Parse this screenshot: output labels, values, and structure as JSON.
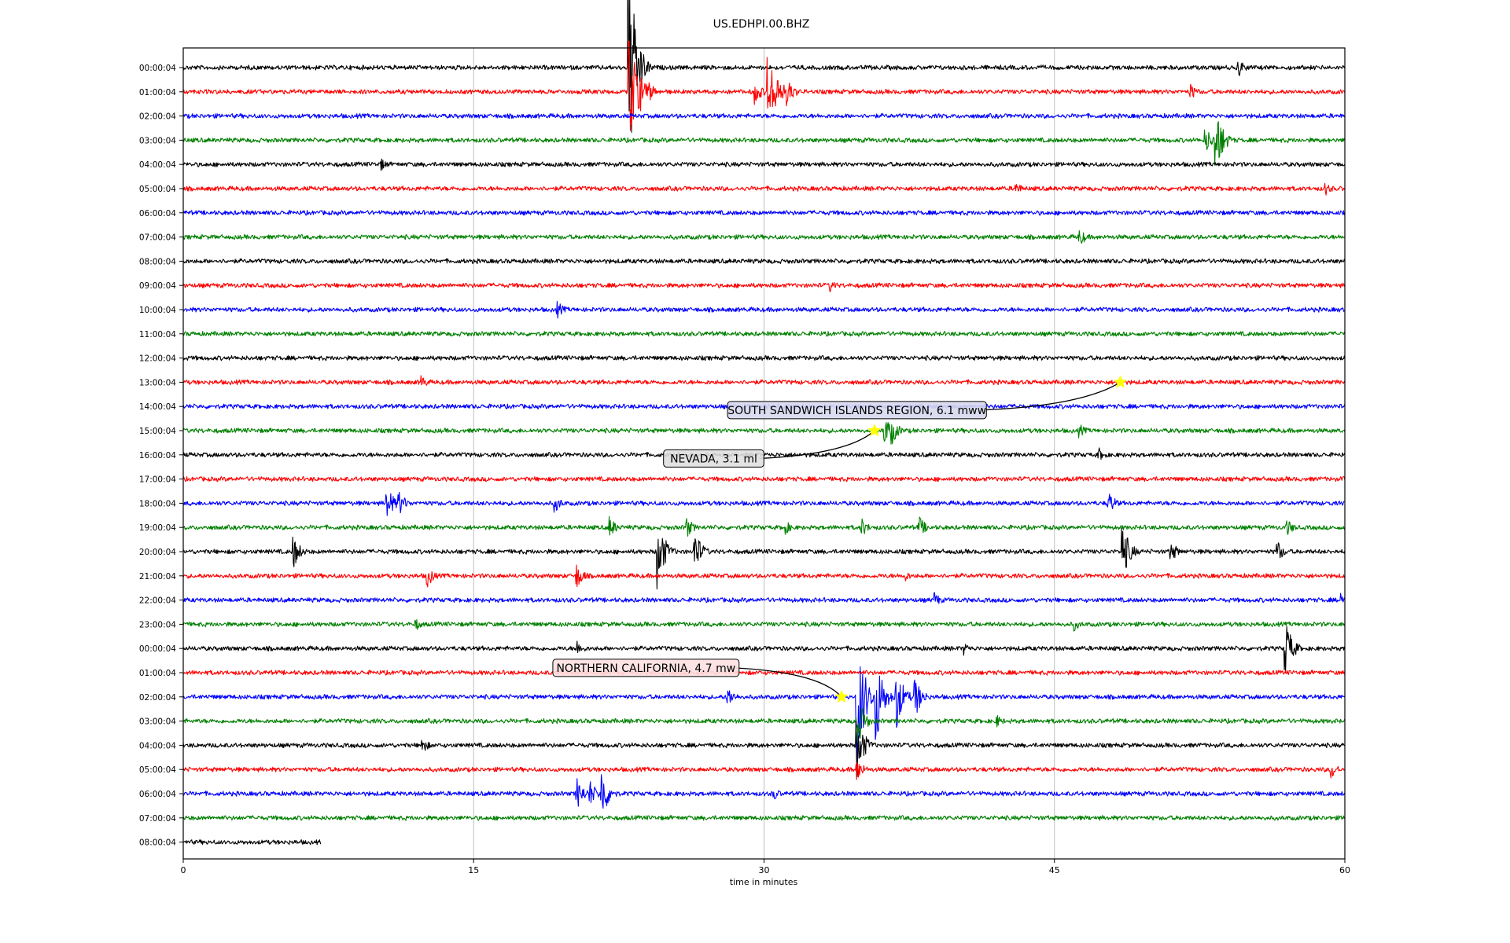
{
  "chart_data": {
    "type": "line",
    "title": "US.EDHPI.00.BHZ",
    "xlabel": "time in minutes",
    "ylabel": "",
    "xlim": [
      0,
      60
    ],
    "x_ticks": [
      "0",
      "15",
      "30",
      "45",
      "60"
    ],
    "grid": "vertical lines at x ticks",
    "row_colors": [
      "#000000",
      "#ff0000",
      "#0000ff",
      "#008000"
    ],
    "rows": [
      {
        "label": "00:00:04",
        "color": "#000000",
        "end_minute": 60,
        "activity": [
          [
            23.0,
            5.0
          ],
          [
            23.5,
            0.9
          ],
          [
            54.5,
            0.4
          ]
        ]
      },
      {
        "label": "01:00:04",
        "color": "#ff0000",
        "end_minute": 60,
        "activity": [
          [
            23.0,
            3.0
          ],
          [
            23.6,
            0.9
          ],
          [
            24.0,
            0.5
          ],
          [
            29.5,
            0.6
          ],
          [
            30.2,
            1.6
          ],
          [
            30.6,
            1.0
          ],
          [
            31.2,
            0.6
          ],
          [
            52.0,
            0.4
          ]
        ]
      },
      {
        "label": "02:00:04",
        "color": "#0000ff",
        "end_minute": 60,
        "activity": []
      },
      {
        "label": "03:00:04",
        "color": "#008000",
        "end_minute": 60,
        "activity": [
          [
            52.8,
            0.6
          ],
          [
            53.3,
            1.7
          ],
          [
            53.7,
            0.5
          ]
        ]
      },
      {
        "label": "04:00:04",
        "color": "#000000",
        "end_minute": 60,
        "activity": [
          [
            10.2,
            0.3
          ]
        ]
      },
      {
        "label": "05:00:04",
        "color": "#ff0000",
        "end_minute": 60,
        "activity": [
          [
            43.0,
            0.3
          ],
          [
            59.0,
            0.3
          ]
        ]
      },
      {
        "label": "06:00:04",
        "color": "#0000ff",
        "end_minute": 60,
        "activity": []
      },
      {
        "label": "07:00:04",
        "color": "#008000",
        "end_minute": 60,
        "activity": [
          [
            46.3,
            0.4
          ]
        ]
      },
      {
        "label": "08:00:04",
        "color": "#000000",
        "end_minute": 60,
        "activity": []
      },
      {
        "label": "09:00:04",
        "color": "#ff0000",
        "end_minute": 60,
        "activity": [
          [
            33.4,
            0.3
          ]
        ]
      },
      {
        "label": "10:00:04",
        "color": "#0000ff",
        "end_minute": 60,
        "activity": [
          [
            19.3,
            0.4
          ]
        ]
      },
      {
        "label": "11:00:04",
        "color": "#008000",
        "end_minute": 60,
        "activity": []
      },
      {
        "label": "12:00:04",
        "color": "#000000",
        "end_minute": 60,
        "activity": []
      },
      {
        "label": "13:00:04",
        "color": "#ff0000",
        "end_minute": 60,
        "activity": [
          [
            12.3,
            0.3
          ]
        ]
      },
      {
        "label": "14:00:04",
        "color": "#0000ff",
        "end_minute": 60,
        "activity": []
      },
      {
        "label": "15:00:04",
        "color": "#008000",
        "end_minute": 60,
        "activity": [
          [
            36.2,
            0.7
          ],
          [
            36.6,
            0.6
          ],
          [
            46.3,
            0.3
          ]
        ]
      },
      {
        "label": "16:00:04",
        "color": "#000000",
        "end_minute": 60,
        "activity": [
          [
            47.3,
            0.3
          ]
        ]
      },
      {
        "label": "17:00:04",
        "color": "#ff0000",
        "end_minute": 60,
        "activity": []
      },
      {
        "label": "18:00:04",
        "color": "#0000ff",
        "end_minute": 60,
        "activity": [
          [
            10.5,
            0.8
          ],
          [
            11.1,
            0.6
          ],
          [
            19.2,
            0.4
          ],
          [
            47.8,
            0.5
          ]
        ]
      },
      {
        "label": "19:00:04",
        "color": "#008000",
        "end_minute": 60,
        "activity": [
          [
            22.0,
            0.5
          ],
          [
            26.0,
            0.45
          ],
          [
            31.0,
            0.4
          ],
          [
            35.0,
            0.45
          ],
          [
            38.0,
            0.5
          ],
          [
            57.0,
            0.4
          ]
        ]
      },
      {
        "label": "20:00:04",
        "color": "#000000",
        "end_minute": 60,
        "activity": [
          [
            5.7,
            0.7
          ],
          [
            24.5,
            1.6
          ],
          [
            26.4,
            1.0
          ],
          [
            48.5,
            1.3
          ],
          [
            51.0,
            0.5
          ],
          [
            56.5,
            0.5
          ]
        ]
      },
      {
        "label": "21:00:04",
        "color": "#ff0000",
        "end_minute": 60,
        "activity": [
          [
            12.6,
            0.5
          ],
          [
            20.3,
            0.6
          ],
          [
            37.2,
            0.3
          ]
        ]
      },
      {
        "label": "22:00:04",
        "color": "#0000ff",
        "end_minute": 60,
        "activity": [
          [
            38.8,
            0.35
          ],
          [
            59.8,
            0.4
          ]
        ]
      },
      {
        "label": "23:00:04",
        "color": "#008000",
        "end_minute": 60,
        "activity": [
          [
            12.0,
            0.3
          ],
          [
            46.0,
            0.3
          ]
        ]
      },
      {
        "label": "00:00:04",
        "color": "#000000",
        "end_minute": 60,
        "activity": [
          [
            20.3,
            0.4
          ],
          [
            40.3,
            0.3
          ],
          [
            56.9,
            1.3
          ]
        ]
      },
      {
        "label": "01:00:04",
        "color": "#ff0000",
        "end_minute": 60,
        "activity": []
      },
      {
        "label": "02:00:04",
        "color": "#0000ff",
        "end_minute": 60,
        "activity": [
          [
            34.8,
            3.2
          ],
          [
            35.8,
            2.0
          ],
          [
            36.8,
            1.5
          ],
          [
            37.8,
            0.9
          ],
          [
            28.1,
            0.5
          ]
        ]
      },
      {
        "label": "03:00:04",
        "color": "#008000",
        "end_minute": 60,
        "activity": [
          [
            34.8,
            1.2
          ],
          [
            42.0,
            0.3
          ]
        ]
      },
      {
        "label": "04:00:04",
        "color": "#000000",
        "end_minute": 60,
        "activity": [
          [
            34.8,
            1.4
          ],
          [
            12.3,
            0.4
          ]
        ]
      },
      {
        "label": "05:00:04",
        "color": "#ff0000",
        "end_minute": 60,
        "activity": [
          [
            34.8,
            0.5
          ],
          [
            59.3,
            0.4
          ]
        ]
      },
      {
        "label": "06:00:04",
        "color": "#0000ff",
        "end_minute": 60,
        "activity": [
          [
            20.3,
            0.8
          ],
          [
            21.0,
            0.6
          ],
          [
            21.6,
            1.2
          ],
          [
            30.5,
            0.3
          ]
        ]
      },
      {
        "label": "07:00:04",
        "color": "#008000",
        "end_minute": 60,
        "activity": []
      },
      {
        "label": "08:00:04",
        "color": "#000000",
        "end_minute": 7.1,
        "activity": []
      }
    ],
    "events": [
      {
        "label": "SOUTH SANDWICH ISLANDS REGION, 6.1 mww",
        "row": 13,
        "minute": 48.4,
        "label_minute": 34.8,
        "label_row_offset": 1.15,
        "box_fill": "#d8d8ee"
      },
      {
        "label": "NEVADA, 3.1 ml",
        "row": 15,
        "minute": 35.7,
        "label_minute": 27.4,
        "label_row_offset": 1.15,
        "box_fill": "#e0e0e0"
      },
      {
        "label": "NORTHERN CALIFORNIA, 4.7 mw",
        "row": 26,
        "minute": 34.0,
        "label_minute": 23.9,
        "label_row_offset": -1.2,
        "box_fill": "#fde0e0"
      }
    ],
    "marker_color": "#ffff00"
  }
}
